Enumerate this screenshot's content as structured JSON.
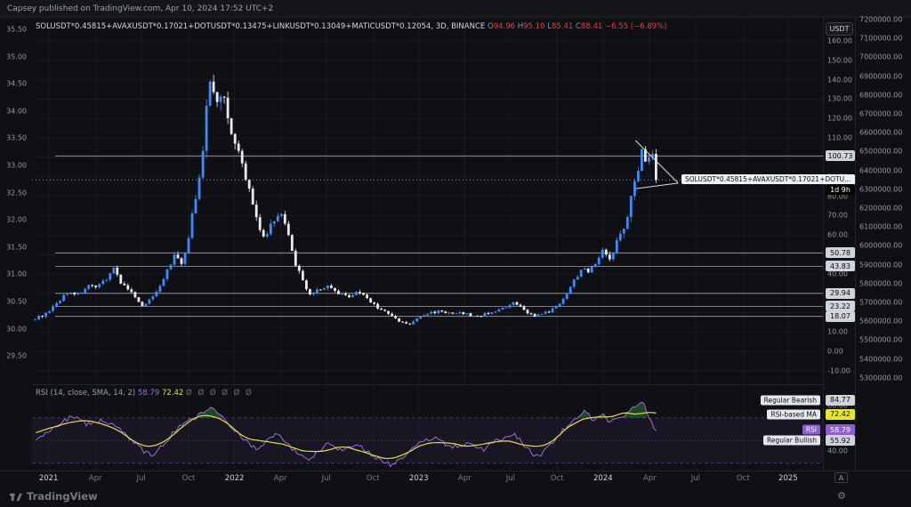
{
  "header": {
    "text": "Capsey published on TradingView.com, Apr 10, 2024 17:52 UTC+2"
  },
  "legend": {
    "symbol": "SOLUSDT*0.45815+AVAXUSDT*0.17021+DOTUSDT*0.13475+LINKUSDT*0.13049+MATICUSDT*0.12054, 3D, BINANCE",
    "o_label": "O",
    "o": "94.96",
    "h_label": "H",
    "h": "95.10",
    "l_label": "L",
    "l": "85.41",
    "c_label": "C",
    "c": "88.41",
    "change": "−6.55 (−6.89%)"
  },
  "axis": {
    "usdt": "USDT"
  },
  "callout": {
    "text": "SOLUSDT*0.45815+AVAXUSDT*0.17021+DOTU..."
  },
  "rsi": {
    "title": "RSI (14, close, SMA, 14, 2)",
    "value": "58.79",
    "ma": "72.42",
    "dots": "Ø Ø Ø Ø Ø Ø"
  },
  "controls": {
    "auto": "A"
  },
  "icons": {
    "gear": "⚙"
  },
  "footer": {
    "brand": "TradingView"
  },
  "chart_data": {
    "type": "candlestick",
    "symbol": "SOLUSDT*0.45815+AVAXUSDT*0.17021+DOTUSDT*0.13475+LINKUSDT*0.13049+MATICUSDT*0.12054",
    "timeframe": "3D",
    "exchange": "BINANCE",
    "quote": "USDT",
    "ohlc": {
      "open": 94.96,
      "high": 95.1,
      "low": 85.41,
      "close": 88.41,
      "change": -6.55,
      "change_pct": -6.89
    },
    "current_price": 88.41,
    "countdown": "1d 9h",
    "levels": [
      100.73,
      50.78,
      43.83,
      29.94,
      23.22,
      18.07
    ],
    "price_axis": {
      "min": -10,
      "max": 160,
      "ticks": [
        160,
        150,
        140,
        130,
        120,
        110,
        100,
        90,
        80,
        70,
        60,
        50,
        40,
        30,
        20,
        10,
        0,
        -10
      ]
    },
    "left_axis_ticks": [
      35.5,
      35.0,
      34.5,
      34.0,
      33.5,
      33.0,
      32.5,
      32.0,
      31.5,
      31.0,
      30.5,
      30.0,
      29.5
    ],
    "far_axis_ticks": [
      7200000,
      7100000,
      7000000,
      6900000,
      6800000,
      6700000,
      6600000,
      6500000,
      6400000,
      6300000,
      6200000,
      6100000,
      6000000,
      5900000,
      5800000,
      5700000,
      5600000,
      5500000,
      5400000,
      5300000
    ],
    "time_axis": [
      {
        "t": 0.021,
        "label": "2021",
        "major": true
      },
      {
        "t": 0.08,
        "label": "Apr",
        "major": false
      },
      {
        "t": 0.138,
        "label": "Jul",
        "major": false
      },
      {
        "t": 0.198,
        "label": "Oct",
        "major": false
      },
      {
        "t": 0.256,
        "label": "2022",
        "major": true
      },
      {
        "t": 0.314,
        "label": "Apr",
        "major": false
      },
      {
        "t": 0.372,
        "label": "Jul",
        "major": false
      },
      {
        "t": 0.431,
        "label": "Oct",
        "major": false
      },
      {
        "t": 0.489,
        "label": "2023",
        "major": true
      },
      {
        "t": 0.547,
        "label": "Apr",
        "major": false
      },
      {
        "t": 0.605,
        "label": "Jul",
        "major": false
      },
      {
        "t": 0.664,
        "label": "Oct",
        "major": false
      },
      {
        "t": 0.722,
        "label": "2024",
        "major": true
      },
      {
        "t": 0.781,
        "label": "Apr",
        "major": false
      },
      {
        "t": 0.839,
        "label": "Jul",
        "major": false
      },
      {
        "t": 0.899,
        "label": "Oct",
        "major": false
      },
      {
        "t": 0.956,
        "label": "2025",
        "major": true
      }
    ],
    "price_anchors": [
      [
        0.004,
        17
      ],
      [
        0.021,
        20
      ],
      [
        0.038,
        28
      ],
      [
        0.049,
        31
      ],
      [
        0.058,
        29
      ],
      [
        0.07,
        34
      ],
      [
        0.081,
        32
      ],
      [
        0.092,
        37
      ],
      [
        0.103,
        43
      ],
      [
        0.112,
        36
      ],
      [
        0.124,
        31
      ],
      [
        0.137,
        23.5
      ],
      [
        0.151,
        27
      ],
      [
        0.164,
        36
      ],
      [
        0.175,
        45
      ],
      [
        0.182,
        50
      ],
      [
        0.189,
        44
      ],
      [
        0.198,
        58
      ],
      [
        0.207,
        80
      ],
      [
        0.216,
        105
      ],
      [
        0.225,
        142
      ],
      [
        0.232,
        128
      ],
      [
        0.238,
        136
      ],
      [
        0.247,
        121
      ],
      [
        0.256,
        108
      ],
      [
        0.265,
        96
      ],
      [
        0.274,
        84
      ],
      [
        0.286,
        66
      ],
      [
        0.295,
        58
      ],
      [
        0.304,
        68
      ],
      [
        0.313,
        73
      ],
      [
        0.322,
        62
      ],
      [
        0.331,
        48
      ],
      [
        0.34,
        38
      ],
      [
        0.349,
        29
      ],
      [
        0.36,
        31
      ],
      [
        0.371,
        34
      ],
      [
        0.385,
        30
      ],
      [
        0.398,
        28
      ],
      [
        0.412,
        31
      ],
      [
        0.425,
        27
      ],
      [
        0.439,
        22
      ],
      [
        0.452,
        19
      ],
      [
        0.466,
        15
      ],
      [
        0.479,
        14
      ],
      [
        0.49,
        18
      ],
      [
        0.504,
        20
      ],
      [
        0.517,
        21
      ],
      [
        0.531,
        19
      ],
      [
        0.544,
        20
      ],
      [
        0.558,
        18
      ],
      [
        0.571,
        19
      ],
      [
        0.585,
        21
      ],
      [
        0.598,
        22
      ],
      [
        0.61,
        25
      ],
      [
        0.623,
        21
      ],
      [
        0.637,
        18
      ],
      [
        0.65,
        20
      ],
      [
        0.664,
        23
      ],
      [
        0.677,
        31
      ],
      [
        0.688,
        38
      ],
      [
        0.697,
        45
      ],
      [
        0.706,
        41
      ],
      [
        0.715,
        48
      ],
      [
        0.724,
        53
      ],
      [
        0.731,
        47
      ],
      [
        0.74,
        57
      ],
      [
        0.749,
        66
      ],
      [
        0.758,
        79
      ],
      [
        0.765,
        92
      ],
      [
        0.772,
        109
      ],
      [
        0.777,
        97
      ],
      [
        0.783,
        104
      ],
      [
        0.789,
        88.41
      ]
    ],
    "wedge": [
      [
        [
          0.763,
          108.7
        ],
        [
          0.817,
          86.7
        ]
      ],
      [
        [
          0.763,
          83.9
        ],
        [
          0.817,
          86.7
        ]
      ]
    ],
    "rsi": {
      "value": 58.79,
      "ma": 72.42,
      "bands": [
        70,
        50,
        30
      ],
      "axis_ticks": [
        80,
        40
      ],
      "panel_labels": [
        {
          "text": "Regular Bearish",
          "value": 84.77,
          "style": "light"
        },
        {
          "text": "RSI-based MA",
          "value": 72.42,
          "style": "yellow"
        },
        {
          "text": "RSI",
          "value": 58.79,
          "style": "purple"
        },
        {
          "text": "Regular Bullish",
          "value": 55.92,
          "style": "light"
        }
      ],
      "anchors": [
        [
          0.005,
          50
        ],
        [
          0.03,
          62
        ],
        [
          0.05,
          72
        ],
        [
          0.07,
          64
        ],
        [
          0.09,
          68
        ],
        [
          0.11,
          60
        ],
        [
          0.13,
          48
        ],
        [
          0.142,
          40
        ],
        [
          0.152,
          37
        ],
        [
          0.165,
          46
        ],
        [
          0.18,
          58
        ],
        [
          0.19,
          65
        ],
        [
          0.21,
          72
        ],
        [
          0.225,
          80
        ],
        [
          0.24,
          71
        ],
        [
          0.256,
          60
        ],
        [
          0.27,
          50
        ],
        [
          0.285,
          42
        ],
        [
          0.3,
          52
        ],
        [
          0.313,
          56
        ],
        [
          0.33,
          42
        ],
        [
          0.35,
          31
        ],
        [
          0.36,
          40
        ],
        [
          0.375,
          48
        ],
        [
          0.39,
          42
        ],
        [
          0.41,
          47
        ],
        [
          0.425,
          40
        ],
        [
          0.44,
          33
        ],
        [
          0.455,
          28
        ],
        [
          0.47,
          36
        ],
        [
          0.49,
          48
        ],
        [
          0.51,
          52
        ],
        [
          0.53,
          44
        ],
        [
          0.55,
          47
        ],
        [
          0.57,
          42
        ],
        [
          0.59,
          51
        ],
        [
          0.61,
          56
        ],
        [
          0.625,
          43
        ],
        [
          0.64,
          35
        ],
        [
          0.655,
          46
        ],
        [
          0.67,
          58
        ],
        [
          0.685,
          68
        ],
        [
          0.7,
          76
        ],
        [
          0.71,
          68
        ],
        [
          0.72,
          74
        ],
        [
          0.73,
          66
        ],
        [
          0.74,
          71
        ],
        [
          0.75,
          73
        ],
        [
          0.76,
          79
        ],
        [
          0.772,
          84.8
        ],
        [
          0.78,
          71
        ],
        [
          0.785,
          63
        ],
        [
          0.789,
          58.79
        ]
      ]
    },
    "colors": {
      "up": "#3d8bfd",
      "down": "#e9ecef",
      "level_line": "#b9bdc6",
      "rsi": "#a06cd5",
      "rsi_ma": "#e0e234",
      "rsi_fill": "rgba(34,120,60,0.55)",
      "down_text": "#f23645"
    }
  }
}
